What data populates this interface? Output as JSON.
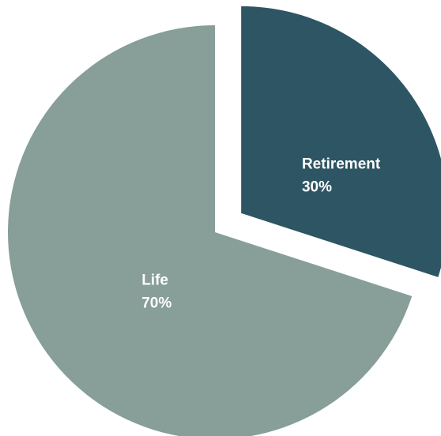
{
  "chart_data": {
    "type": "pie",
    "categories": [
      "Retirement",
      "Life"
    ],
    "values": [
      30,
      70
    ],
    "value_labels": [
      "30%",
      "70%"
    ],
    "colors": [
      "#2e5564",
      "#879e99"
    ],
    "explode": [
      true,
      false
    ]
  }
}
